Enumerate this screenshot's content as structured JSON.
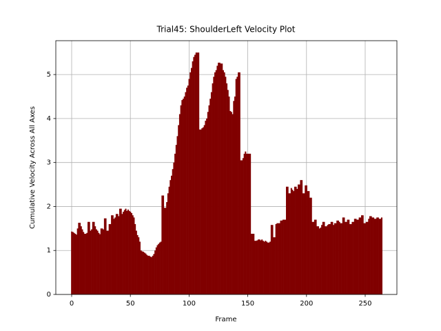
{
  "chart_data": {
    "type": "bar",
    "title": "Trial45: ShoulderLeft Velocity Plot",
    "x_label": "Frame",
    "y_label": "Cumulative Velocity Across All Axes",
    "color": "#800000",
    "grid": true,
    "xlim": [
      -13.5,
      277
    ],
    "ylim": [
      0,
      5.77
    ],
    "xticks": [
      0,
      50,
      100,
      150,
      200,
      250
    ],
    "yticks": [
      0,
      1,
      2,
      3,
      4,
      5
    ],
    "x": [
      0,
      1,
      2,
      3,
      4,
      5,
      6,
      7,
      8,
      9,
      10,
      11,
      12,
      13,
      14,
      15,
      16,
      17,
      18,
      19,
      20,
      21,
      22,
      23,
      24,
      25,
      26,
      27,
      28,
      29,
      30,
      31,
      32,
      33,
      34,
      35,
      36,
      37,
      38,
      39,
      40,
      41,
      42,
      43,
      44,
      45,
      46,
      47,
      48,
      49,
      50,
      51,
      52,
      53,
      54,
      55,
      56,
      57,
      58,
      59,
      60,
      61,
      62,
      63,
      64,
      65,
      66,
      67,
      68,
      69,
      70,
      71,
      72,
      73,
      74,
      75,
      76,
      77,
      78,
      79,
      80,
      81,
      82,
      83,
      84,
      85,
      86,
      87,
      88,
      89,
      90,
      91,
      92,
      93,
      94,
      95,
      96,
      97,
      98,
      99,
      100,
      101,
      102,
      103,
      104,
      105,
      106,
      107,
      108,
      109,
      110,
      111,
      112,
      113,
      114,
      115,
      116,
      117,
      118,
      119,
      120,
      121,
      122,
      123,
      124,
      125,
      126,
      127,
      128,
      129,
      130,
      131,
      132,
      133,
      134,
      135,
      136,
      137,
      138,
      139,
      140,
      141,
      142,
      143,
      144,
      145,
      146,
      147,
      148,
      149,
      150,
      151,
      152,
      153,
      154,
      155,
      156,
      157,
      158,
      159,
      160,
      161,
      162,
      163,
      164,
      165,
      166,
      167,
      168,
      169,
      170,
      171,
      172,
      173,
      174,
      175,
      176,
      177,
      178,
      179,
      180,
      181,
      182,
      183,
      184,
      185,
      186,
      187,
      188,
      189,
      190,
      191,
      192,
      193,
      194,
      195,
      196,
      197,
      198,
      199,
      200,
      201,
      202,
      203,
      204,
      205,
      206,
      207,
      208,
      209,
      210,
      211,
      212,
      213,
      214,
      215,
      216,
      217,
      218,
      219,
      220,
      221,
      222,
      223,
      224,
      225,
      226,
      227,
      228,
      229,
      230,
      231,
      232,
      233,
      234,
      235,
      236,
      237,
      238,
      239,
      240,
      241,
      242,
      243,
      244,
      245,
      246,
      247,
      248,
      249,
      250,
      251,
      252,
      253,
      254,
      255,
      256,
      257,
      258,
      259,
      260,
      261,
      262,
      263,
      264
    ],
    "values": [
      1.43,
      1.42,
      1.4,
      1.38,
      1.36,
      1.5,
      1.63,
      1.63,
      1.55,
      1.48,
      1.42,
      1.38,
      1.38,
      1.4,
      1.65,
      1.65,
      1.45,
      1.48,
      1.65,
      1.65,
      1.55,
      1.48,
      1.45,
      1.4,
      1.37,
      1.5,
      1.5,
      1.48,
      1.73,
      1.73,
      1.45,
      1.45,
      1.6,
      1.6,
      1.8,
      1.8,
      1.72,
      1.75,
      1.83,
      1.83,
      1.78,
      1.95,
      1.95,
      1.83,
      1.88,
      1.92,
      1.95,
      1.9,
      1.93,
      1.9,
      1.88,
      1.85,
      1.8,
      1.75,
      1.6,
      1.45,
      1.35,
      1.3,
      1.2,
      1.0,
      0.98,
      0.97,
      0.95,
      0.93,
      0.9,
      0.88,
      0.88,
      0.86,
      0.85,
      0.88,
      0.92,
      1.0,
      1.07,
      1.12,
      1.15,
      1.18,
      1.2,
      2.25,
      2.25,
      1.97,
      1.97,
      2.1,
      2.3,
      2.45,
      2.6,
      2.7,
      2.85,
      3.0,
      3.2,
      3.4,
      3.6,
      3.85,
      4.1,
      4.3,
      4.42,
      4.45,
      4.5,
      4.6,
      4.7,
      4.75,
      4.9,
      5.05,
      5.15,
      5.3,
      5.4,
      5.45,
      5.5,
      5.5,
      5.5,
      3.75,
      3.75,
      3.78,
      3.8,
      3.85,
      3.95,
      4.0,
      4.15,
      4.3,
      4.45,
      4.6,
      4.8,
      4.95,
      5.05,
      5.1,
      5.2,
      5.27,
      5.27,
      5.25,
      5.25,
      5.1,
      5.05,
      4.95,
      4.8,
      4.65,
      4.5,
      4.17,
      4.15,
      4.1,
      4.4,
      4.5,
      4.9,
      4.95,
      5.05,
      5.05,
      3.05,
      3.05,
      3.1,
      3.2,
      3.25,
      3.2,
      3.2,
      3.2,
      3.2,
      1.38,
      1.38,
      1.38,
      1.22,
      1.22,
      1.23,
      1.25,
      1.25,
      1.23,
      1.25,
      1.22,
      1.2,
      1.22,
      1.2,
      1.18,
      1.18,
      1.2,
      1.58,
      1.58,
      1.3,
      1.3,
      1.6,
      1.62,
      1.62,
      1.62,
      1.68,
      1.68,
      1.7,
      1.7,
      1.7,
      2.45,
      2.45,
      2.3,
      2.3,
      2.42,
      2.38,
      2.35,
      2.45,
      2.45,
      2.4,
      2.5,
      2.5,
      2.6,
      2.6,
      2.3,
      2.3,
      2.48,
      2.48,
      2.35,
      2.35,
      2.2,
      2.2,
      1.65,
      1.65,
      1.7,
      1.7,
      1.55,
      1.55,
      1.5,
      1.52,
      1.58,
      1.65,
      1.65,
      1.55,
      1.55,
      1.58,
      1.6,
      1.6,
      1.65,
      1.65,
      1.58,
      1.62,
      1.62,
      1.68,
      1.68,
      1.65,
      1.62,
      1.62,
      1.75,
      1.75,
      1.65,
      1.65,
      1.7,
      1.7,
      1.6,
      1.6,
      1.65,
      1.65,
      1.72,
      1.72,
      1.7,
      1.7,
      1.75,
      1.75,
      1.8,
      1.8,
      1.62,
      1.62,
      1.65,
      1.65,
      1.72,
      1.78,
      1.78,
      1.75,
      1.75,
      1.72,
      1.72,
      1.75,
      1.75,
      1.72,
      1.72,
      1.75
    ]
  }
}
